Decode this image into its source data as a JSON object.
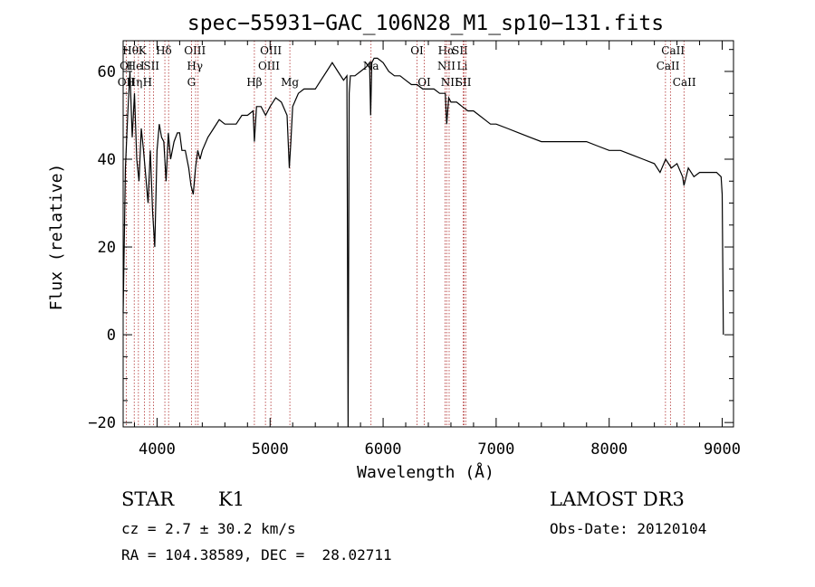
{
  "chart_data": {
    "type": "line",
    "title": "spec−55931−GAC_106N28_M1_sp10−131.fits",
    "xlabel": "Wavelength (Å)",
    "ylabel": "Flux (relative)",
    "xlim": [
      3700,
      9100
    ],
    "ylim": [
      -21,
      67
    ],
    "xticks": [
      4000,
      5000,
      6000,
      7000,
      8000,
      9000
    ],
    "yticks": [
      -20,
      0,
      20,
      40,
      60
    ],
    "ytick_labels": [
      "−20",
      "0",
      "20",
      "40",
      "60"
    ],
    "grid": false,
    "series": [
      {
        "x": [
          3700,
          3720,
          3740,
          3760,
          3780,
          3800,
          3820,
          3840,
          3860,
          3880,
          3900,
          3920,
          3940,
          3960,
          3980,
          4000,
          4020,
          4040,
          4060,
          4080,
          4100,
          4120,
          4150,
          4180,
          4200,
          4220,
          4250,
          4280,
          4300,
          4320,
          4340,
          4360,
          4380,
          4400,
          4450,
          4500,
          4550,
          4600,
          4650,
          4700,
          4750,
          4800,
          4850,
          4861,
          4880,
          4920,
          4960,
          5000,
          5050,
          5100,
          5150,
          5170,
          5184,
          5200,
          5250,
          5300,
          5350,
          5400,
          5450,
          5500,
          5550,
          5600,
          5650,
          5680,
          5690,
          5700,
          5710,
          5750,
          5800,
          5850,
          5880,
          5890,
          5900,
          5920,
          5950,
          6000,
          6050,
          6100,
          6150,
          6200,
          6250,
          6300,
          6350,
          6400,
          6450,
          6500,
          6550,
          6563,
          6580,
          6600,
          6650,
          6700,
          6750,
          6800,
          6850,
          6900,
          6950,
          7000,
          7100,
          7200,
          7300,
          7400,
          7500,
          7600,
          7700,
          7800,
          7900,
          8000,
          8100,
          8200,
          8300,
          8400,
          8450,
          8500,
          8550,
          8600,
          8650,
          8662,
          8700,
          8750,
          8800,
          8850,
          8900,
          8950,
          8990,
          9000,
          9010
        ],
        "y": [
          5,
          38,
          50,
          60,
          45,
          55,
          40,
          35,
          47,
          42,
          36,
          30,
          42,
          28,
          20,
          42,
          48,
          45,
          44,
          35,
          46,
          40,
          44,
          46,
          46,
          42,
          42,
          38,
          34,
          32,
          38,
          42,
          40,
          42,
          45,
          47,
          49,
          48,
          48,
          48,
          50,
          50,
          51,
          44,
          52,
          52,
          50,
          52,
          54,
          53,
          50,
          38,
          44,
          52,
          55,
          56,
          56,
          56,
          58,
          60,
          62,
          60,
          58,
          59,
          -21,
          55,
          59,
          59,
          60,
          61,
          62,
          50,
          62,
          63,
          63,
          62,
          60,
          59,
          59,
          58,
          57,
          57,
          56,
          56,
          56,
          55,
          55,
          48,
          54,
          53,
          53,
          52,
          51,
          51,
          50,
          49,
          48,
          48,
          47,
          46,
          45,
          44,
          44,
          44,
          44,
          44,
          43,
          42,
          42,
          41,
          40,
          39,
          37,
          40,
          38,
          39,
          36,
          34,
          38,
          36,
          37,
          37,
          37,
          37,
          36,
          32,
          0
        ]
      }
    ],
    "line_annotations": [
      {
        "label": "OII",
        "x": 3727,
        "row": 2,
        "labx": 3727
      },
      {
        "label": "Hθ",
        "x": 3798,
        "row": 0,
        "labx": 3765
      },
      {
        "label": "OI",
        "x": 3727,
        "row": 1,
        "labx": 3727
      },
      {
        "label": "He",
        "x": 3889,
        "row": 1,
        "labx": 3800
      },
      {
        "label": "Hη",
        "x": 3835,
        "row": 2,
        "labx": 3800
      },
      {
        "label": "K",
        "x": 3934,
        "row": 0,
        "labx": 3870
      },
      {
        "label": "I",
        "x": 3889,
        "row": 1,
        "labx": 3870
      },
      {
        "label": "H",
        "x": 3969,
        "row": 2,
        "labx": 3915
      },
      {
        "label": "SII",
        "x": 4069,
        "row": 1,
        "labx": 3950
      },
      {
        "label": "Hδ",
        "x": 4102,
        "row": 0,
        "labx": 4060
      },
      {
        "label": "OIII",
        "x": 4363,
        "row": 0,
        "labx": 4335
      },
      {
        "label": "Hγ",
        "x": 4341,
        "row": 1,
        "labx": 4335
      },
      {
        "label": "G",
        "x": 4304,
        "row": 2,
        "labx": 4304
      },
      {
        "label": "Hβ",
        "x": 4861,
        "row": 2,
        "labx": 4861
      },
      {
        "label": "OIII",
        "x": 4959,
        "row": 0,
        "labx": 5007
      },
      {
        "label": "OIII",
        "x": 5007,
        "row": 1,
        "labx": 4990
      },
      {
        "label": "Mg",
        "x": 5175,
        "row": 2,
        "labx": 5175
      },
      {
        "label": "Na",
        "x": 5893,
        "row": 1,
        "labx": 5893
      },
      {
        "label": "OI",
        "x": 6300,
        "row": 0,
        "labx": 6300
      },
      {
        "label": "OI",
        "x": 6364,
        "row": 2,
        "labx": 6364
      },
      {
        "label": "Hα",
        "x": 6563,
        "row": 0,
        "labx": 6560
      },
      {
        "label": "SII",
        "x": 6716,
        "row": 0,
        "labx": 6680
      },
      {
        "label": "NII",
        "x": 6548,
        "row": 1,
        "labx": 6560
      },
      {
        "label": "Li",
        "x": 6708,
        "row": 1,
        "labx": 6700
      },
      {
        "label": "NII",
        "x": 6584,
        "row": 2,
        "labx": 6590
      },
      {
        "label": "SII",
        "x": 6731,
        "row": 2,
        "labx": 6710
      },
      {
        "label": "CaII",
        "x": 8498,
        "row": 0,
        "labx": 8565
      },
      {
        "label": "CaII",
        "x": 8542,
        "row": 1,
        "labx": 8520
      },
      {
        "label": "CaII",
        "x": 8662,
        "row": 2,
        "labx": 8665
      }
    ]
  },
  "footer": {
    "class_label": "STAR",
    "subclass_label": "K1",
    "redshift": "cz = 2.7 ± 30.2 km/s",
    "coords": "RA = 104.38589, DEC =  28.02711",
    "survey": "LAMOST DR3",
    "obs_date": "Obs-Date: 20120104"
  }
}
